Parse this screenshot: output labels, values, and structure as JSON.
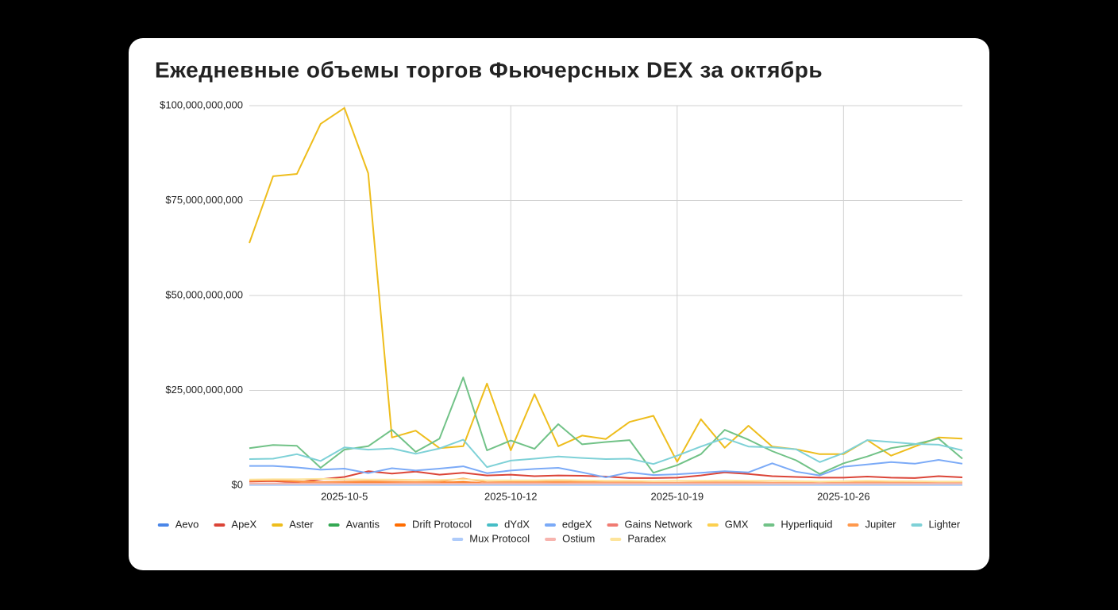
{
  "chart_data": {
    "type": "line",
    "title": "Ежедневные объемы торгов Фьючерсных DEX за октябрь",
    "categories": [
      null,
      null,
      null,
      null,
      "2025-10-5",
      null,
      null,
      null,
      null,
      null,
      null,
      "2025-10-12",
      null,
      null,
      null,
      null,
      null,
      null,
      "2025-10-19",
      null,
      null,
      null,
      null,
      null,
      null,
      "2025-10-26",
      null,
      null,
      null,
      null,
      null
    ],
    "ylim": [
      0,
      100000000000
    ],
    "yticks": [
      {
        "value": 0,
        "label": "$0"
      },
      {
        "value": 25000000000,
        "label": "$25,000,000,000"
      },
      {
        "value": 50000000000,
        "label": "$50,000,000,000"
      },
      {
        "value": 75000000000,
        "label": "$75,000,000,000"
      },
      {
        "value": 100000000000,
        "label": "$100,000,000,000"
      }
    ],
    "grid": true,
    "legend": "bottom",
    "series": [
      {
        "name": "Aevo",
        "color": "#4a86e8",
        "values": [
          100000000,
          100000000,
          100000000,
          100000000,
          100000000,
          100000000,
          100000000,
          100000000,
          100000000,
          100000000,
          100000000,
          100000000,
          100000000,
          100000000,
          100000000,
          100000000,
          100000000,
          100000000,
          100000000,
          100000000,
          100000000,
          100000000,
          100000000,
          100000000,
          100000000,
          100000000,
          100000000,
          100000000,
          100000000,
          100000000,
          100000000
        ]
      },
      {
        "name": "ApeX",
        "color": "#db4437",
        "values": [
          1000000000,
          1100000000,
          800000000,
          1600000000,
          2200000000,
          3700000000,
          3100000000,
          3600000000,
          2800000000,
          3300000000,
          2600000000,
          2800000000,
          2400000000,
          2600000000,
          2500000000,
          2300000000,
          1900000000,
          1900000000,
          2000000000,
          2600000000,
          3400000000,
          3000000000,
          2400000000,
          2200000000,
          2000000000,
          2000000000,
          2300000000,
          2000000000,
          1900000000,
          2400000000,
          2100000000
        ]
      },
      {
        "name": "Aster",
        "color": "#eebd1c",
        "values": [
          63800000000,
          81400000000,
          82000000000,
          95200000000,
          99400000000,
          82200000000,
          12600000000,
          14400000000,
          9800000000,
          10300000000,
          26800000000,
          9200000000,
          24000000000,
          10300000000,
          13100000000,
          12200000000,
          16700000000,
          18300000000,
          6200000000,
          17400000000,
          9900000000,
          15700000000,
          10200000000,
          9500000000,
          8200000000,
          8200000000,
          11900000000,
          7800000000,
          10200000000,
          12600000000,
          12300000000
        ]
      },
      {
        "name": "Avantis",
        "color": "#34a853",
        "values": [
          300000000,
          300000000,
          400000000,
          300000000,
          400000000,
          500000000,
          400000000,
          400000000,
          400000000,
          600000000,
          300000000,
          400000000,
          400000000,
          900000000,
          800000000,
          600000000,
          400000000,
          300000000,
          300000000,
          400000000,
          400000000,
          300000000,
          300000000,
          300000000,
          200000000,
          300000000,
          300000000,
          300000000,
          300000000,
          300000000,
          300000000
        ]
      },
      {
        "name": "Drift Protocol",
        "color": "#ff6d01",
        "values": [
          1200000000,
          1300000000,
          1000000000,
          700000000,
          800000000,
          900000000,
          800000000,
          700000000,
          700000000,
          900000000,
          500000000,
          500000000,
          600000000,
          700000000,
          600000000,
          500000000,
          500000000,
          400000000,
          400000000,
          500000000,
          500000000,
          500000000,
          500000000,
          400000000,
          400000000,
          400000000,
          500000000,
          500000000,
          400000000,
          400000000,
          400000000
        ]
      },
      {
        "name": "dYdX",
        "color": "#46bdc6",
        "values": [
          300000000,
          300000000,
          300000000,
          300000000,
          300000000,
          300000000,
          300000000,
          300000000,
          300000000,
          300000000,
          300000000,
          300000000,
          300000000,
          300000000,
          300000000,
          300000000,
          300000000,
          300000000,
          300000000,
          300000000,
          300000000,
          300000000,
          300000000,
          300000000,
          300000000,
          300000000,
          300000000,
          300000000,
          300000000,
          300000000,
          300000000
        ]
      },
      {
        "name": "edgeX",
        "color": "#7baaf7",
        "values": [
          5100000000,
          5100000000,
          4700000000,
          4100000000,
          4400000000,
          3200000000,
          4500000000,
          3900000000,
          4400000000,
          5000000000,
          3200000000,
          3900000000,
          4300000000,
          4600000000,
          3400000000,
          2100000000,
          3400000000,
          2700000000,
          2900000000,
          3300000000,
          3700000000,
          3400000000,
          5800000000,
          3600000000,
          2600000000,
          4900000000,
          5500000000,
          6100000000,
          5700000000,
          6700000000,
          5700000000
        ]
      },
      {
        "name": "Gains Network",
        "color": "#f07b72",
        "values": [
          200000000,
          200000000,
          200000000,
          200000000,
          200000000,
          200000000,
          200000000,
          200000000,
          200000000,
          200000000,
          200000000,
          200000000,
          200000000,
          200000000,
          200000000,
          200000000,
          200000000,
          200000000,
          200000000,
          200000000,
          200000000,
          200000000,
          200000000,
          200000000,
          200000000,
          200000000,
          200000000,
          200000000,
          200000000,
          200000000,
          200000000
        ]
      },
      {
        "name": "GMX",
        "color": "#fcd04f",
        "values": [
          300000000,
          300000000,
          300000000,
          300000000,
          300000000,
          300000000,
          300000000,
          300000000,
          300000000,
          300000000,
          300000000,
          300000000,
          300000000,
          300000000,
          300000000,
          300000000,
          300000000,
          300000000,
          300000000,
          300000000,
          300000000,
          300000000,
          300000000,
          300000000,
          300000000,
          300000000,
          300000000,
          300000000,
          300000000,
          300000000,
          300000000
        ]
      },
      {
        "name": "Hyperliquid",
        "color": "#71c287",
        "values": [
          9800000000,
          10600000000,
          10400000000,
          4600000000,
          9400000000,
          10300000000,
          14600000000,
          8800000000,
          12300000000,
          28400000000,
          9200000000,
          11800000000,
          9600000000,
          16100000000,
          10800000000,
          11400000000,
          11900000000,
          3300000000,
          5300000000,
          8200000000,
          14600000000,
          12000000000,
          9000000000,
          6600000000,
          3000000000,
          5800000000,
          7600000000,
          9800000000,
          10800000000,
          12300000000,
          7000000000
        ]
      },
      {
        "name": "Jupiter",
        "color": "#ff994d",
        "values": [
          1200000000,
          1300000000,
          1100000000,
          900000000,
          1000000000,
          1100000000,
          1000000000,
          900000000,
          1000000000,
          1800000000,
          800000000,
          900000000,
          900000000,
          1000000000,
          900000000,
          800000000,
          800000000,
          700000000,
          700000000,
          800000000,
          800000000,
          800000000,
          700000000,
          700000000,
          600000000,
          700000000,
          800000000,
          800000000,
          700000000,
          700000000,
          700000000
        ]
      },
      {
        "name": "Lighter",
        "color": "#7ed1d7",
        "values": [
          6900000000,
          7000000000,
          8200000000,
          6400000000,
          10000000000,
          9400000000,
          9700000000,
          8300000000,
          9700000000,
          12000000000,
          4800000000,
          6500000000,
          7000000000,
          7600000000,
          7200000000,
          6900000000,
          7000000000,
          5600000000,
          7800000000,
          10200000000,
          12400000000,
          10200000000,
          10000000000,
          9500000000,
          6100000000,
          8500000000,
          11900000000,
          11400000000,
          10900000000,
          10700000000,
          9200000000
        ]
      },
      {
        "name": "Mux Protocol",
        "color": "#aecbfa",
        "values": [
          50000000,
          50000000,
          50000000,
          50000000,
          50000000,
          50000000,
          50000000,
          50000000,
          50000000,
          50000000,
          50000000,
          50000000,
          50000000,
          50000000,
          50000000,
          50000000,
          50000000,
          50000000,
          50000000,
          50000000,
          50000000,
          50000000,
          50000000,
          50000000,
          50000000,
          50000000,
          50000000,
          50000000,
          50000000,
          50000000,
          50000000
        ]
      },
      {
        "name": "Ostium",
        "color": "#f7b4ae",
        "values": [
          500000000,
          500000000,
          500000000,
          500000000,
          500000000,
          500000000,
          500000000,
          500000000,
          500000000,
          500000000,
          500000000,
          500000000,
          500000000,
          500000000,
          500000000,
          500000000,
          500000000,
          500000000,
          500000000,
          500000000,
          500000000,
          500000000,
          500000000,
          500000000,
          500000000,
          500000000,
          500000000,
          500000000,
          500000000,
          500000000,
          500000000
        ]
      },
      {
        "name": "Paradex",
        "color": "#fde49b",
        "values": [
          1500000000,
          1600000000,
          1600000000,
          1700000000,
          1600000000,
          1500000000,
          1500000000,
          1400000000,
          1400000000,
          1600000000,
          1300000000,
          1300000000,
          1300000000,
          1400000000,
          1300000000,
          1200000000,
          1200000000,
          1100000000,
          1200000000,
          1200000000,
          1300000000,
          1200000000,
          1200000000,
          1100000000,
          1000000000,
          1100000000,
          1200000000,
          1100000000,
          1100000000,
          1000000000,
          1000000000
        ]
      }
    ]
  }
}
